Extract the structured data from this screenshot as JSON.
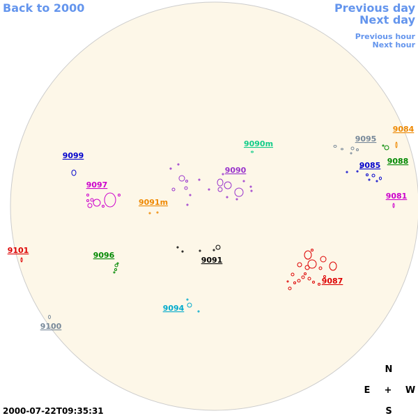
{
  "navigation": {
    "back": "Back to 2000",
    "previous_day": "Previous day",
    "next_day": "Next day",
    "previous_hour": "Previous hour",
    "next_hour": "Next hour"
  },
  "regions": [
    {
      "label": "9099",
      "color": "#0000cc"
    },
    {
      "label": "9097",
      "color": "#cc00cc"
    },
    {
      "label": "9091m",
      "color": "#ee8800"
    },
    {
      "label": "9090m",
      "color": "#11cc88"
    },
    {
      "label": "9090",
      "color": "#9933cc"
    },
    {
      "label": "9095",
      "color": "#778899"
    },
    {
      "label": "9084",
      "color": "#ee8800"
    },
    {
      "label": "9088",
      "color": "#008800"
    },
    {
      "label": "9085",
      "color": "#0000cc"
    },
    {
      "label": "9081",
      "color": "#cc00cc"
    },
    {
      "label": "9101",
      "color": "#dd0000"
    },
    {
      "label": "9096",
      "color": "#008800"
    },
    {
      "label": "9091",
      "color": "#000000"
    },
    {
      "label": "9087",
      "color": "#dd0000"
    },
    {
      "label": "9094",
      "color": "#00aacc"
    },
    {
      "label": "9100",
      "color": "#778899"
    }
  ],
  "compass": {
    "north": "N",
    "east": "E",
    "center": "+",
    "west": "W",
    "south": "S"
  },
  "timestamp": "2000-07-22T09:35:31"
}
